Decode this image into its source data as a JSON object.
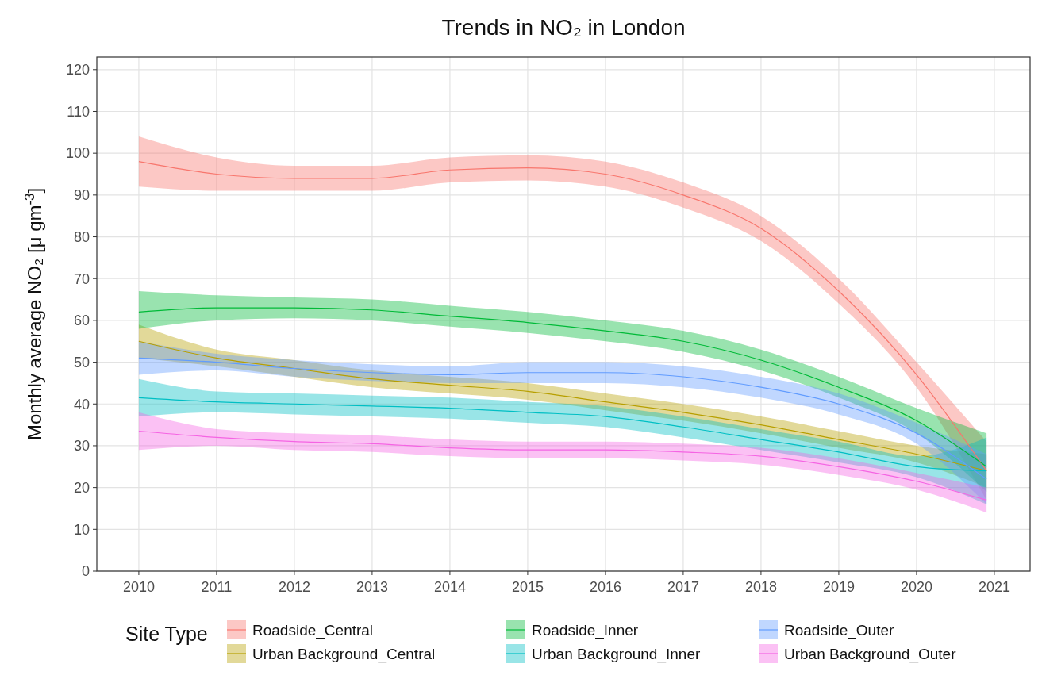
{
  "chart_data": {
    "type": "line",
    "title": "Trends in NO₂ in London",
    "xlabel": null,
    "ylabel": "Monthly average NO₂ [μ gm$^{-3}$]",
    "legend_title": "Site Type",
    "x": [
      2010,
      2011,
      2012,
      2013,
      2014,
      2015,
      2016,
      2017,
      2018,
      2019,
      2020,
      2020.9
    ],
    "series": [
      {
        "name": "Roadside_Central",
        "color": "#f8766d",
        "values": [
          98,
          95,
          94,
          94,
          96,
          96.5,
          95,
          90,
          82,
          67,
          47,
          24
        ],
        "lower": [
          92,
          91,
          91,
          91,
          93,
          93.5,
          92,
          87,
          79,
          64,
          44,
          17
        ],
        "upper": [
          104,
          99,
          97,
          97,
          99,
          99.5,
          98,
          93,
          85,
          70,
          50,
          31
        ]
      },
      {
        "name": "Urban Background_Central",
        "color": "#b79f00",
        "values": [
          55,
          51,
          48.5,
          46,
          44.5,
          43,
          40.5,
          38,
          35,
          31.5,
          28,
          24
        ],
        "lower": [
          51,
          49,
          46.5,
          44,
          42.5,
          41,
          38.5,
          36,
          33,
          29.5,
          26,
          20
        ],
        "upper": [
          59,
          53,
          50.5,
          48,
          46.5,
          45,
          42.5,
          40,
          37,
          33.5,
          30,
          28
        ]
      },
      {
        "name": "Roadside_Inner",
        "color": "#00ba38",
        "values": [
          62,
          63,
          63,
          62.5,
          61,
          59.5,
          57.5,
          55,
          50.5,
          44,
          36,
          25
        ],
        "lower": [
          58,
          60,
          60.5,
          60,
          58.5,
          57,
          55,
          52.5,
          48,
          41.5,
          33,
          19
        ],
        "upper": [
          67,
          66,
          65.5,
          65,
          63.5,
          62,
          60,
          57.5,
          53,
          46.5,
          39,
          33
        ]
      },
      {
        "name": "Urban Background_Inner",
        "color": "#00bfc4",
        "values": [
          41.5,
          40.5,
          40,
          39.5,
          39,
          38,
          37,
          34.5,
          31.5,
          28.5,
          25,
          24
        ],
        "lower": [
          37,
          38,
          37.5,
          37,
          36.5,
          35.5,
          34.5,
          32,
          29,
          26,
          22.5,
          16
        ],
        "upper": [
          46,
          43,
          42.5,
          42,
          41.5,
          40.5,
          39.5,
          37,
          34,
          31,
          27.5,
          32
        ]
      },
      {
        "name": "Roadside_Outer",
        "color": "#619cff",
        "values": [
          51,
          50,
          48.5,
          47.5,
          47,
          47.5,
          47.5,
          46.5,
          44,
          40,
          33,
          22
        ],
        "lower": [
          47,
          48,
          46.5,
          45.5,
          45,
          45,
          45,
          44,
          41.5,
          37.5,
          30.5,
          16
        ],
        "upper": [
          55,
          52,
          50.5,
          49.5,
          49,
          50,
          50,
          49,
          46.5,
          42.5,
          35.5,
          28
        ]
      },
      {
        "name": "Urban Background_Outer",
        "color": "#f564e3",
        "values": [
          33.5,
          32,
          31,
          30.5,
          29.5,
          29,
          29,
          28.5,
          27.5,
          25,
          21.5,
          17
        ],
        "lower": [
          29,
          30,
          29,
          28.5,
          27.5,
          27,
          27,
          26.5,
          25.5,
          23,
          19.5,
          14
        ],
        "upper": [
          38,
          34,
          33,
          32.5,
          31.5,
          31,
          31,
          30.5,
          29.5,
          27,
          23.5,
          20
        ]
      }
    ],
    "xlim": [
      2009.46,
      2021.46
    ],
    "xticks": [
      2010,
      2011,
      2012,
      2013,
      2014,
      2015,
      2016,
      2017,
      2018,
      2019,
      2020,
      2021
    ],
    "ylim": [
      0,
      123
    ],
    "yticks": [
      0,
      10,
      20,
      30,
      40,
      50,
      60,
      70,
      80,
      90,
      100,
      110,
      120
    ],
    "grid": true,
    "legend": "bottom",
    "line_style": "solid",
    "marker": "none"
  }
}
